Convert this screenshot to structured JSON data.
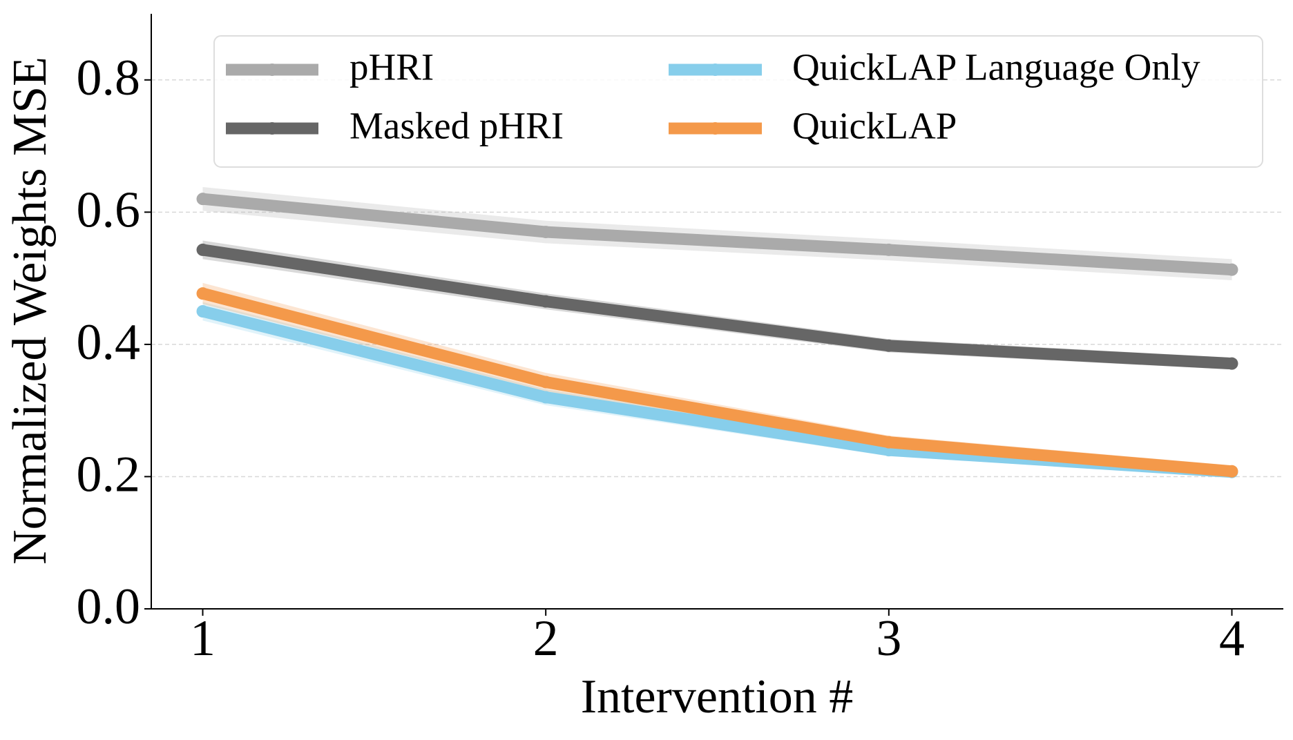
{
  "chart_data": {
    "type": "line",
    "xlabel": "Intervention #",
    "ylabel": "Normalized Weights MSE",
    "x": [
      1,
      2,
      3,
      4
    ],
    "series": [
      {
        "name": "pHRI",
        "color": "#aaaaaa",
        "values": [
          0.62,
          0.57,
          0.543,
          0.513
        ],
        "errors": [
          0.018,
          0.017,
          0.016,
          0.016
        ]
      },
      {
        "name": "Masked pHRI",
        "color": "#666666",
        "values": [
          0.543,
          0.465,
          0.398,
          0.371
        ],
        "errors": [
          0.014,
          0.012,
          0.01,
          0.009
        ]
      },
      {
        "name": "QuickLAP Language Only",
        "color": "#87ceeb",
        "values": [
          0.45,
          0.32,
          0.24,
          0.207
        ],
        "errors": [
          0.014,
          0.012,
          0.009,
          0.008
        ]
      },
      {
        "name": "QuickLAP",
        "color": "#f4994a",
        "values": [
          0.477,
          0.343,
          0.252,
          0.208
        ],
        "errors": [
          0.016,
          0.014,
          0.01,
          0.009
        ]
      }
    ],
    "xlim": [
      0.85,
      4.15
    ],
    "xticks": [
      1,
      2,
      3,
      4
    ],
    "ylim": [
      0,
      0.9
    ],
    "yticks": [
      {
        "value": 0,
        "label": "0.0"
      },
      0.2,
      0.4,
      0.6,
      0.8
    ],
    "grid": true,
    "legend": "upper center"
  }
}
